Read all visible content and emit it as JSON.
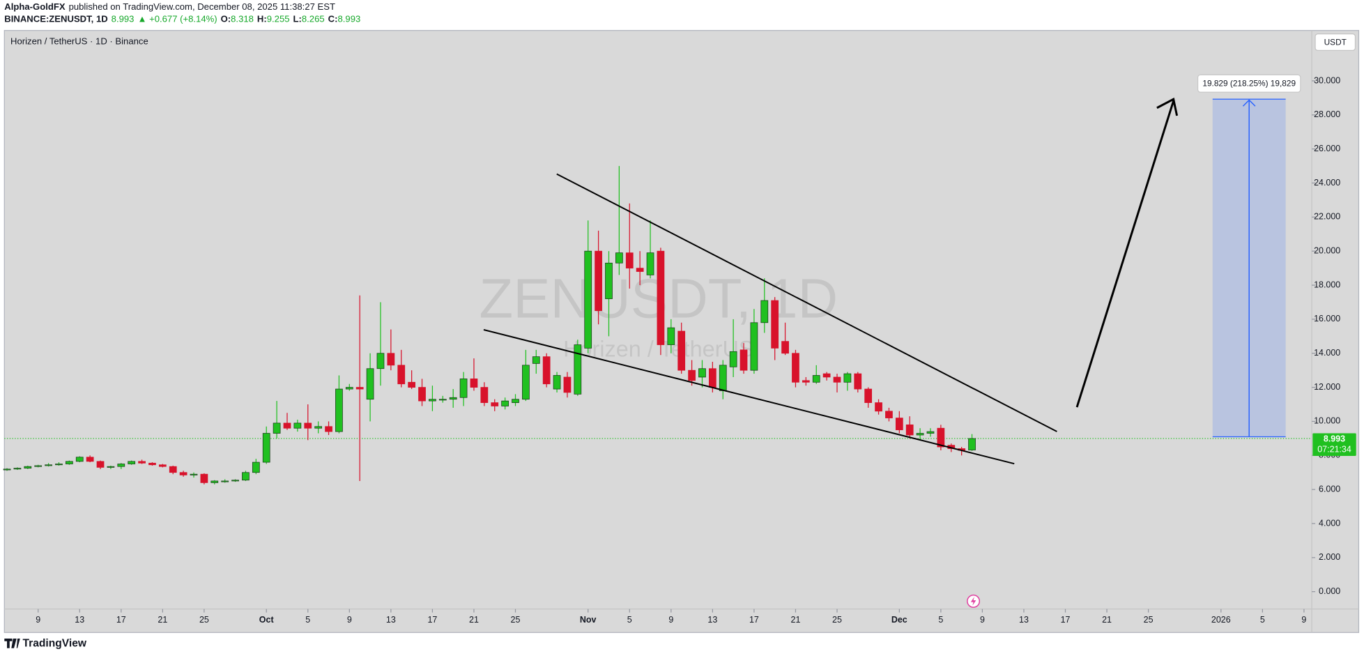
{
  "header": {
    "author": "Alpha-GoldFX",
    "published": "published on TradingView.com, December 08, 2025 11:38:27 EST"
  },
  "chart_data": {
    "type": "candlestick",
    "title": "Horizen / TetherUS · 1D · Binance",
    "symbol": "BINANCE:ZENUSDT, 1D",
    "legend_values": {
      "last": "8.993",
      "change": "▲ +0.677 (+8.14%)",
      "open_label": "O:",
      "open": "8.318",
      "high_label": "H:",
      "high": "9.255",
      "low_label": "L:",
      "low": "8.265",
      "close_label": "C:",
      "close": "8.993"
    },
    "watermark": {
      "symbol": "ZENUSDT, 1D",
      "name": "Horizen / TetherUS"
    },
    "currency": "USDT",
    "up_color": "#20c020",
    "down_color": "#d8122b",
    "x": [
      "2025-09-06",
      "2025-09-07",
      "2025-09-08",
      "2025-09-09",
      "2025-09-10",
      "2025-09-11",
      "2025-09-12",
      "2025-09-13",
      "2025-09-14",
      "2025-09-15",
      "2025-09-16",
      "2025-09-17",
      "2025-09-18",
      "2025-09-19",
      "2025-09-20",
      "2025-09-21",
      "2025-09-22",
      "2025-09-23",
      "2025-09-24",
      "2025-09-25",
      "2025-09-26",
      "2025-09-27",
      "2025-09-28",
      "2025-09-29",
      "2025-09-30",
      "2025-10-01",
      "2025-10-02",
      "2025-10-03",
      "2025-10-04",
      "2025-10-05",
      "2025-10-06",
      "2025-10-07",
      "2025-10-08",
      "2025-10-09",
      "2025-10-10",
      "2025-10-11",
      "2025-10-12",
      "2025-10-13",
      "2025-10-14",
      "2025-10-15",
      "2025-10-16",
      "2025-10-17",
      "2025-10-18",
      "2025-10-19",
      "2025-10-20",
      "2025-10-21",
      "2025-10-22",
      "2025-10-23",
      "2025-10-24",
      "2025-10-25",
      "2025-10-26",
      "2025-10-27",
      "2025-10-28",
      "2025-10-29",
      "2025-10-30",
      "2025-10-31",
      "2025-11-01",
      "2025-11-02",
      "2025-11-03",
      "2025-11-04",
      "2025-11-05",
      "2025-11-06",
      "2025-11-07",
      "2025-11-08",
      "2025-11-09",
      "2025-11-10",
      "2025-11-11",
      "2025-11-12",
      "2025-11-13",
      "2025-11-14",
      "2025-11-15",
      "2025-11-16",
      "2025-11-17",
      "2025-11-18",
      "2025-11-19",
      "2025-11-20",
      "2025-11-21",
      "2025-11-22",
      "2025-11-23",
      "2025-11-24",
      "2025-11-25",
      "2025-11-26",
      "2025-11-27",
      "2025-11-28",
      "2025-11-29",
      "2025-11-30",
      "2025-12-01",
      "2025-12-02",
      "2025-12-03",
      "2025-12-04",
      "2025-12-05",
      "2025-12-06",
      "2025-12-07",
      "2025-12-08"
    ],
    "open": [
      7.15,
      7.2,
      7.25,
      7.35,
      7.4,
      7.45,
      7.5,
      7.65,
      7.9,
      7.65,
      7.3,
      7.35,
      7.5,
      7.65,
      7.55,
      7.45,
      7.35,
      7.0,
      6.85,
      6.9,
      6.4,
      6.5,
      6.5,
      6.55,
      7.0,
      7.6,
      9.3,
      9.9,
      9.6,
      9.9,
      9.6,
      9.7,
      9.4,
      11.9,
      12.0,
      11.3,
      13.1,
      14.0,
      13.3,
      12.3,
      12.0,
      11.2,
      11.3,
      11.3,
      11.4,
      12.5,
      12.0,
      11.1,
      10.9,
      11.1,
      11.3,
      13.4,
      13.8,
      11.9,
      12.6,
      11.6,
      14.3,
      20.0,
      17.2,
      19.3,
      19.9,
      19.0,
      18.6,
      20.0,
      14.5,
      15.3,
      13.0,
      12.6,
      13.1,
      11.8,
      13.2,
      14.2,
      13.0,
      15.8,
      17.1,
      14.7,
      14.0,
      12.4,
      12.3,
      12.8,
      12.6,
      12.3,
      12.8,
      11.9,
      11.1,
      10.6,
      10.2,
      9.8,
      9.2,
      9.3,
      9.6,
      8.6,
      8.4,
      8.318
    ],
    "high": [
      7.25,
      7.3,
      7.4,
      7.45,
      7.55,
      7.6,
      7.7,
      7.95,
      8.0,
      7.7,
      7.4,
      7.55,
      7.7,
      7.75,
      7.6,
      7.5,
      7.4,
      7.1,
      7.0,
      6.95,
      6.55,
      6.6,
      6.6,
      7.1,
      7.8,
      9.7,
      11.2,
      10.5,
      10.1,
      11.0,
      10.0,
      10.0,
      12.7,
      12.2,
      17.4,
      14.0,
      17.0,
      15.4,
      14.2,
      13.0,
      12.5,
      12.1,
      11.5,
      11.9,
      12.9,
      13.7,
      12.3,
      11.3,
      11.4,
      11.6,
      14.2,
      14.2,
      14.0,
      12.9,
      12.9,
      14.8,
      21.8,
      21.2,
      20.0,
      25.0,
      22.8,
      20.0,
      21.8,
      20.2,
      16.0,
      15.8,
      13.6,
      13.6,
      13.5,
      13.6,
      16.0,
      14.6,
      16.6,
      18.4,
      17.3,
      15.8,
      14.2,
      12.6,
      13.3,
      12.9,
      12.8,
      12.9,
      12.9,
      12.0,
      11.3,
      10.8,
      10.6,
      10.3,
      9.6,
      9.6,
      9.8,
      8.7,
      8.5,
      9.255
    ],
    "low": [
      7.1,
      7.15,
      7.2,
      7.3,
      7.35,
      7.4,
      7.45,
      7.6,
      7.6,
      7.2,
      7.2,
      7.2,
      7.45,
      7.5,
      7.4,
      7.3,
      6.9,
      6.75,
      6.7,
      6.3,
      6.3,
      6.4,
      6.45,
      6.5,
      6.9,
      7.5,
      9.0,
      9.5,
      9.4,
      8.9,
      9.3,
      9.2,
      9.3,
      11.8,
      6.5,
      10.0,
      12.1,
      13.0,
      12.0,
      11.9,
      10.9,
      10.6,
      11.1,
      10.8,
      10.9,
      11.8,
      10.9,
      10.6,
      10.7,
      10.9,
      11.2,
      12.8,
      12.0,
      11.7,
      11.4,
      11.5,
      14.0,
      15.7,
      15.0,
      18.6,
      17.8,
      18.0,
      18.4,
      13.9,
      14.0,
      12.8,
      12.1,
      12.0,
      11.7,
      11.3,
      12.6,
      12.8,
      12.8,
      15.2,
      13.6,
      13.9,
      12.0,
      12.1,
      12.2,
      12.4,
      11.7,
      11.8,
      11.7,
      10.8,
      10.4,
      10.0,
      9.3,
      9.0,
      8.9,
      9.1,
      8.3,
      8.2,
      8.0,
      8.265
    ],
    "close": [
      7.2,
      7.25,
      7.35,
      7.4,
      7.45,
      7.5,
      7.65,
      7.9,
      7.65,
      7.3,
      7.35,
      7.5,
      7.65,
      7.55,
      7.45,
      7.35,
      7.0,
      6.85,
      6.9,
      6.4,
      6.5,
      6.5,
      6.55,
      7.0,
      7.6,
      9.3,
      9.9,
      9.6,
      9.9,
      9.6,
      9.7,
      9.4,
      11.9,
      12.0,
      11.9,
      13.1,
      14.0,
      13.3,
      12.2,
      12.0,
      11.2,
      11.3,
      11.3,
      11.4,
      12.5,
      12.0,
      11.1,
      10.9,
      11.2,
      11.3,
      13.3,
      13.8,
      12.2,
      12.7,
      11.7,
      14.5,
      20.0,
      16.5,
      19.3,
      19.9,
      19.0,
      18.8,
      19.9,
      14.5,
      15.5,
      13.0,
      12.4,
      13.1,
      12.0,
      13.3,
      14.1,
      13.0,
      15.8,
      17.1,
      14.3,
      14.0,
      12.3,
      12.3,
      12.7,
      12.6,
      12.3,
      12.8,
      11.9,
      11.1,
      10.6,
      10.2,
      9.5,
      9.2,
      9.3,
      9.4,
      8.5,
      8.4,
      8.3,
      8.993
    ],
    "last_price": {
      "value": 8.993,
      "label": "8.993",
      "countdown": "07:21:34"
    },
    "measure_label": "19.829 (218.25%) 19,829",
    "xlim": [
      "2025-09-06",
      "2026-01-10"
    ],
    "xticks": [
      {
        "value": "2025-09-09",
        "label": "9"
      },
      {
        "value": "2025-09-13",
        "label": "13"
      },
      {
        "value": "2025-09-17",
        "label": "17"
      },
      {
        "value": "2025-09-21",
        "label": "21"
      },
      {
        "value": "2025-09-25",
        "label": "25"
      },
      {
        "value": "2025-10-01",
        "label": "Oct"
      },
      {
        "value": "2025-10-05",
        "label": "5"
      },
      {
        "value": "2025-10-09",
        "label": "9"
      },
      {
        "value": "2025-10-13",
        "label": "13"
      },
      {
        "value": "2025-10-17",
        "label": "17"
      },
      {
        "value": "2025-10-21",
        "label": "21"
      },
      {
        "value": "2025-10-25",
        "label": "25"
      },
      {
        "value": "2025-11-01",
        "label": "Nov"
      },
      {
        "value": "2025-11-05",
        "label": "5"
      },
      {
        "value": "2025-11-09",
        "label": "9"
      },
      {
        "value": "2025-11-13",
        "label": "13"
      },
      {
        "value": "2025-11-17",
        "label": "17"
      },
      {
        "value": "2025-11-21",
        "label": "21"
      },
      {
        "value": "2025-11-25",
        "label": "25"
      },
      {
        "value": "2025-12-01",
        "label": "Dec"
      },
      {
        "value": "2025-12-05",
        "label": "5"
      },
      {
        "value": "2025-12-09",
        "label": "9"
      },
      {
        "value": "2025-12-13",
        "label": "13"
      },
      {
        "value": "2025-12-17",
        "label": "17"
      },
      {
        "value": "2025-12-21",
        "label": "21"
      },
      {
        "value": "2025-12-25",
        "label": "25"
      },
      {
        "value": "2026-01-01",
        "label": "2026"
      },
      {
        "value": "2026-01-05",
        "label": "5"
      },
      {
        "value": "2026-01-09",
        "label": "9"
      }
    ],
    "ylim": [
      -1.02,
      32.96
    ],
    "yticks": [
      {
        "value": 0,
        "label": "0.000"
      },
      {
        "value": 2,
        "label": "2.000"
      },
      {
        "value": 4,
        "label": "4.000"
      },
      {
        "value": 6,
        "label": "6.000"
      },
      {
        "value": 8,
        "label": "8.000"
      },
      {
        "value": 10,
        "label": "10.000"
      },
      {
        "value": 12,
        "label": "12.000"
      },
      {
        "value": 14,
        "label": "14.000"
      },
      {
        "value": 16,
        "label": "16.000"
      },
      {
        "value": 18,
        "label": "18.000"
      },
      {
        "value": 20,
        "label": "20.000"
      },
      {
        "value": 22,
        "label": "22.000"
      },
      {
        "value": 24,
        "label": "24.000"
      },
      {
        "value": 26,
        "label": "26.000"
      },
      {
        "value": 28,
        "label": "28.000"
      },
      {
        "value": 30,
        "label": "30.000"
      }
    ]
  },
  "footer": {
    "brand": "TradingView"
  }
}
